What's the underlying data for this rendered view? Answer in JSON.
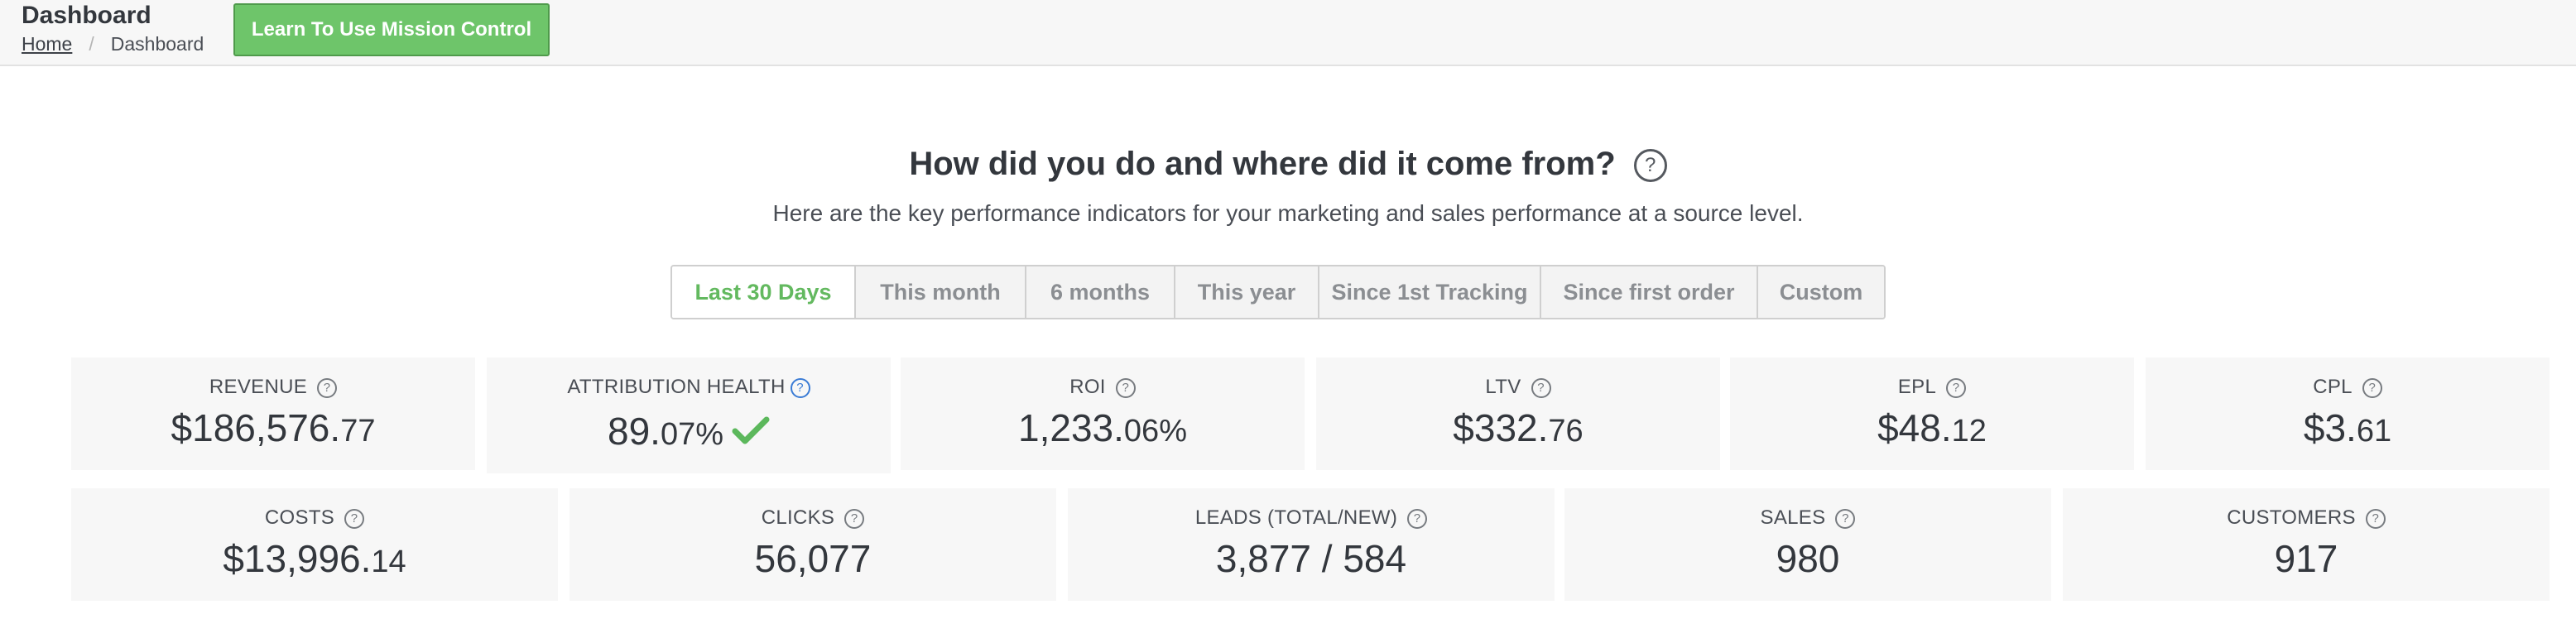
{
  "header": {
    "title": "Dashboard",
    "breadcrumb": {
      "home": "Home",
      "separator": "/",
      "current": "Dashboard"
    },
    "learn_button": "Learn To Use Mission Control"
  },
  "headline": {
    "title": "How did you do and where did it come from?",
    "help": "?",
    "subtitle": "Here are the key performance indicators for your marketing and sales performance at a source level."
  },
  "range_tabs": [
    {
      "label": "Last 30 Days",
      "active": true
    },
    {
      "label": "This month",
      "active": false
    },
    {
      "label": "6 months",
      "active": false
    },
    {
      "label": "This year",
      "active": false
    },
    {
      "label": "Since 1st Tracking",
      "active": false
    },
    {
      "label": "Since first order",
      "active": false
    },
    {
      "label": "Custom",
      "active": false
    }
  ],
  "kpis_row1": [
    {
      "label": "REVENUE",
      "help": "?",
      "value_main": "$186,576.",
      "value_small": "77"
    },
    {
      "label": "ATTRIBUTION HEALTH",
      "help": "?",
      "value_main": "89.",
      "value_small": "07%",
      "status_icon": "check-icon"
    },
    {
      "label": "ROI",
      "help": "?",
      "value_main": "1,233.",
      "value_small": "06%"
    },
    {
      "label": "LTV",
      "help": "?",
      "value_main": "$332.",
      "value_small": "76"
    },
    {
      "label": "EPL",
      "help": "?",
      "value_main": "$48.",
      "value_small": "12"
    },
    {
      "label": "CPL",
      "help": "?",
      "value_main": "$3.",
      "value_small": "61"
    }
  ],
  "kpis_row2": [
    {
      "label": "COSTS",
      "help": "?",
      "value_main": "$13,996.",
      "value_small": "14"
    },
    {
      "label": "CLICKS",
      "help": "?",
      "value_main": "56,077",
      "value_small": ""
    },
    {
      "label": "LEADS (TOTAL/NEW)",
      "help": "?",
      "value_main": "3,877 / 584",
      "value_small": ""
    },
    {
      "label": "SALES",
      "help": "?",
      "value_main": "980",
      "value_small": ""
    },
    {
      "label": "CUSTOMERS",
      "help": "?",
      "value_main": "917",
      "value_small": ""
    }
  ],
  "colors": {
    "accent_green": "#6ec56a",
    "active_tab_text": "#63b95f",
    "help_blue": "#3a7bd5"
  }
}
